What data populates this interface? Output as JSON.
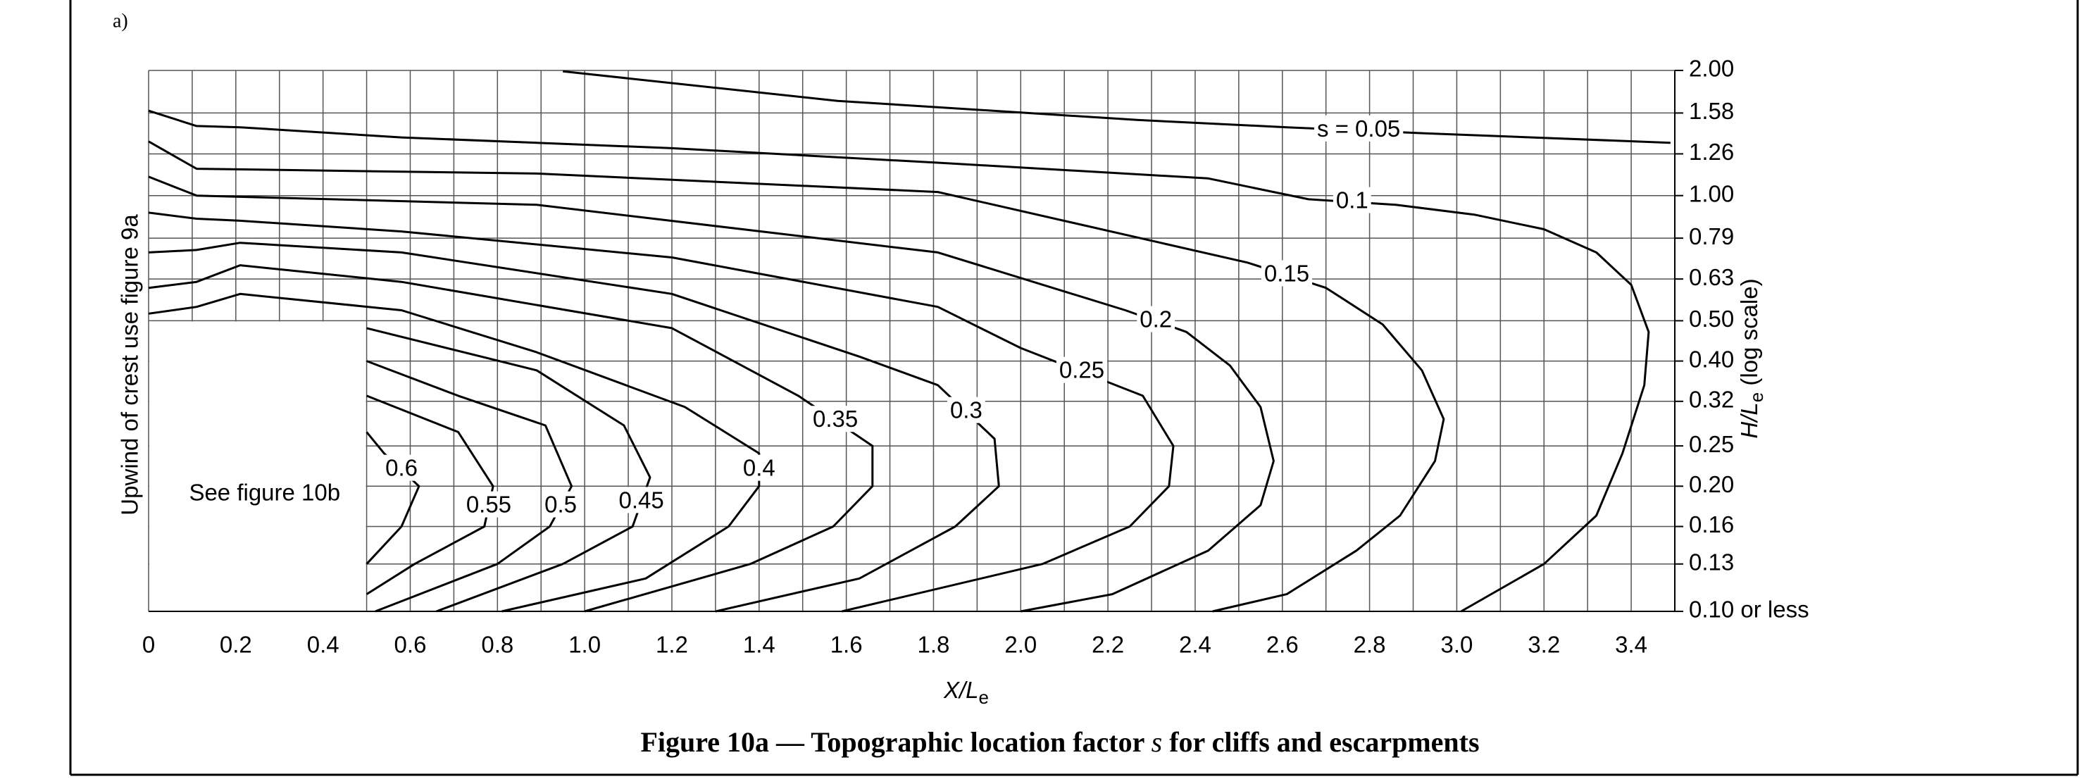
{
  "panel_label": "a)",
  "chart_data": {
    "type": "contour",
    "x_label": "X/L",
    "x_label_sub": "e",
    "y_label": "Upwind of crest use figure 9a",
    "y2_label": "H/L",
    "y2_label_sub": "e",
    "y2_label_note": " (log scale)",
    "region_note": "See figure 10b",
    "caption": [
      "Figure 10a — Topographic location factor ",
      "s",
      " for cliffs and escarpments"
    ],
    "xlim": [
      0,
      3.5
    ],
    "ylim": [
      0.1,
      2.0
    ],
    "ylog": true,
    "grid": true,
    "line_color": "#000000",
    "xticks": [
      0,
      0.2,
      0.4,
      0.6,
      0.8,
      {
        "value": 1,
        "label": "1.0"
      },
      1.2,
      1.4,
      1.6,
      1.8,
      {
        "value": 2,
        "label": "2.0"
      },
      2.2,
      2.4,
      2.6,
      2.8,
      {
        "value": 3,
        "label": "3.0"
      },
      3.2,
      3.4
    ],
    "xminorticks": [
      0.1,
      0.3,
      0.5,
      0.7,
      0.9,
      1.1,
      1.3,
      1.5,
      1.7,
      1.9,
      2.1,
      2.3,
      2.5,
      2.7,
      2.9,
      3.1,
      3.3,
      3.5
    ],
    "yticks": [
      {
        "value": 2,
        "label": "2.00"
      },
      1.58,
      1.26,
      {
        "value": 1,
        "label": "1.00"
      },
      0.79,
      0.63,
      {
        "value": 0.5,
        "label": "0.50"
      },
      {
        "value": 0.4,
        "label": "0.40"
      },
      0.32,
      0.25,
      {
        "value": 0.2,
        "label": "0.20"
      },
      0.16,
      0.13,
      {
        "value": 0.1,
        "label": "0.10 or less"
      }
    ],
    "blank_region": {
      "xlim": [
        0,
        0.5
      ],
      "ylim": [
        0.1,
        0.5
      ]
    },
    "contours": [
      {
        "level": 0.05,
        "label": "s = 0.05",
        "x": [
          0.95,
          1.58,
          2.27,
          2.61,
          2.94,
          3.49
        ],
        "y": [
          1.99,
          1.69,
          1.52,
          1.46,
          1.41,
          1.34
        ]
      },
      {
        "level": 0.1,
        "label": "0.1",
        "x": [
          0,
          0.11,
          0.21,
          0.58,
          1.2,
          1.81,
          2.43,
          2.66,
          2.86,
          3.04,
          3.2,
          3.32,
          3.4,
          3.44,
          3.43,
          3.38,
          3.32,
          3.2,
          3.01
        ],
        "y": [
          1.6,
          1.47,
          1.46,
          1.38,
          1.3,
          1.2,
          1.1,
          0.98,
          0.95,
          0.9,
          0.83,
          0.73,
          0.61,
          0.47,
          0.35,
          0.24,
          0.17,
          0.13,
          0.1
        ]
      },
      {
        "level": 0.15,
        "label": "0.15",
        "x": [
          0,
          0.11,
          0.89,
          1.81,
          2.52,
          2.7,
          2.83,
          2.92,
          2.97,
          2.95,
          2.87,
          2.77,
          2.61,
          2.44
        ],
        "y": [
          1.35,
          1.16,
          1.13,
          1.02,
          0.69,
          0.6,
          0.49,
          0.38,
          0.29,
          0.23,
          0.17,
          0.14,
          0.11,
          0.1
        ]
      },
      {
        "level": 0.2,
        "label": "0.2",
        "x": [
          0,
          0.11,
          0.89,
          1.81,
          2.24,
          2.38,
          2.48,
          2.55,
          2.58,
          2.55,
          2.43,
          2.21,
          2.0
        ],
        "y": [
          1.11,
          1.0,
          0.95,
          0.73,
          0.53,
          0.47,
          0.39,
          0.31,
          0.23,
          0.18,
          0.14,
          0.11,
          0.1
        ]
      },
      {
        "level": 0.25,
        "label": "0.25",
        "x": [
          0,
          0.11,
          0.21,
          0.58,
          1.2,
          1.81,
          2.0,
          2.28,
          2.35,
          2.34,
          2.25,
          2.05,
          1.59
        ],
        "y": [
          0.91,
          0.88,
          0.87,
          0.82,
          0.71,
          0.54,
          0.43,
          0.33,
          0.25,
          0.2,
          0.16,
          0.13,
          0.1
        ]
      },
      {
        "level": 0.3,
        "label": "0.3",
        "x": [
          0,
          0.11,
          0.21,
          0.58,
          1.2,
          1.63,
          1.81,
          1.94,
          1.95,
          1.85,
          1.63,
          1.3
        ],
        "y": [
          0.73,
          0.74,
          0.77,
          0.73,
          0.58,
          0.41,
          0.35,
          0.26,
          0.2,
          0.16,
          0.12,
          0.1
        ]
      },
      {
        "level": 0.35,
        "label": "0.35",
        "x": [
          0,
          0.11,
          0.21,
          0.58,
          1.2,
          1.49,
          1.66,
          1.66,
          1.57,
          1.38,
          1.0
        ],
        "y": [
          0.6,
          0.62,
          0.68,
          0.62,
          0.48,
          0.33,
          0.25,
          0.2,
          0.16,
          0.13,
          0.1
        ]
      },
      {
        "level": 0.4,
        "label": "0.4",
        "x": [
          0,
          0.11,
          0.21,
          0.58,
          0.89,
          1.23,
          1.4,
          1.4,
          1.33,
          1.14,
          0.81
        ],
        "y": [
          0.52,
          0.54,
          0.58,
          0.53,
          0.42,
          0.31,
          0.24,
          0.2,
          0.16,
          0.12,
          0.1
        ]
      },
      {
        "level": 0.45,
        "label": "0.45",
        "x": [
          0.5,
          0.89,
          1.09,
          1.15,
          1.11,
          0.95,
          0.66
        ],
        "y": [
          0.48,
          0.38,
          0.28,
          0.21,
          0.16,
          0.13,
          0.1
        ]
      },
      {
        "level": 0.5,
        "label": "0.5",
        "x": [
          0.5,
          0.71,
          0.91,
          0.97,
          0.92,
          0.8,
          0.52
        ],
        "y": [
          0.4,
          0.33,
          0.28,
          0.2,
          0.16,
          0.13,
          0.1
        ]
      },
      {
        "level": 0.55,
        "label": "0.55",
        "x": [
          0.5,
          0.71,
          0.79,
          0.77,
          0.61,
          0.5
        ],
        "y": [
          0.33,
          0.27,
          0.2,
          0.16,
          0.13,
          0.11
        ]
      },
      {
        "level": 0.6,
        "label": "0.6",
        "x": [
          0.5,
          0.54,
          0.62,
          0.58,
          0.5
        ],
        "y": [
          0.27,
          0.24,
          0.2,
          0.16,
          0.13
        ]
      }
    ]
  }
}
